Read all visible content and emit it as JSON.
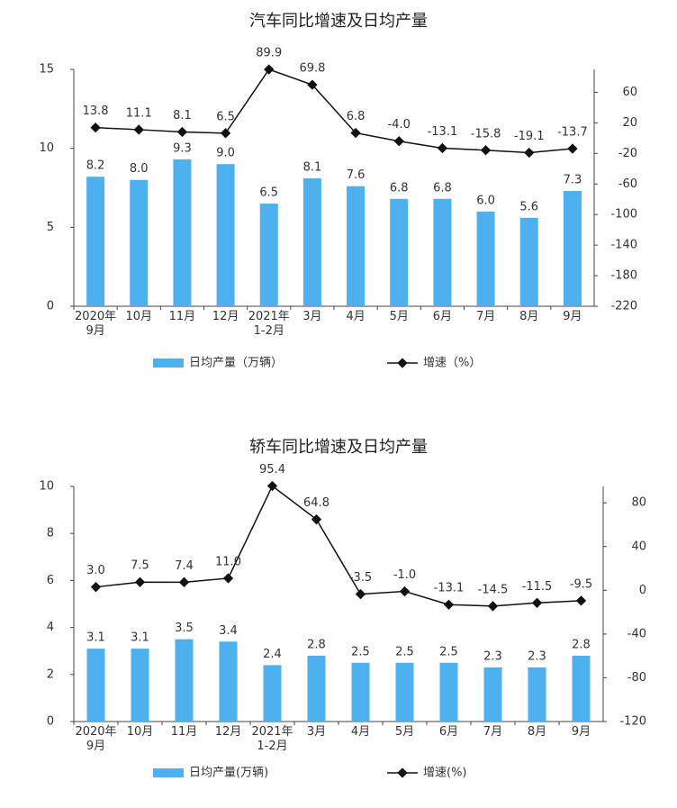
{
  "chart_data": [
    {
      "type": "combo",
      "title": "汽车同比增速及日均产量",
      "categories": [
        "2020年\n9月",
        "10月",
        "11月",
        "12月",
        "2021年\n1-2月",
        "3月",
        "4月",
        "5月",
        "6月",
        "7月",
        "8月",
        "9月"
      ],
      "series": [
        {
          "name": "日均产量（万辆）",
          "type": "bar",
          "color": "#4db1ef",
          "values": [
            8.2,
            8.0,
            9.3,
            9.0,
            6.5,
            8.1,
            7.6,
            6.8,
            6.8,
            6.0,
            5.6,
            7.3
          ],
          "value_labels": [
            "8.2",
            "8.0",
            "9.3",
            "9.0",
            "6.5",
            "8.1",
            "7.6",
            "6.8",
            "6.8",
            "6.0",
            "5.6",
            "7.3"
          ]
        },
        {
          "name": "增速（%）",
          "type": "line",
          "axis": "y2",
          "color": "#111111",
          "values": [
            13.8,
            11.1,
            8.1,
            6.5,
            89.9,
            69.8,
            6.8,
            -4.0,
            -13.1,
            -15.8,
            -19.1,
            -13.7
          ],
          "value_labels": [
            "13.8",
            "11.1",
            "8.1",
            "6.5",
            "89.9",
            "69.8",
            "6.8",
            "-4.0",
            "-13.1",
            "-15.8",
            "-19.1",
            "-13.7"
          ]
        }
      ],
      "ylim": [
        0,
        15
      ],
      "yticks": [
        0,
        5,
        10,
        15
      ],
      "y2lim": [
        -220,
        90
      ],
      "y2ticks": [
        -220,
        -180,
        -140,
        -100,
        -60,
        -20,
        20,
        60
      ]
    },
    {
      "type": "combo",
      "title": "轿车同比增速及日均产量",
      "categories": [
        "2020年\n9月",
        "10月",
        "11月",
        "12月",
        "2021年\n1-2月",
        "3月",
        "4月",
        "5月",
        "6月",
        "7月",
        "8月",
        "9月"
      ],
      "series": [
        {
          "name": "日均产量(万辆)",
          "type": "bar",
          "color": "#4db1ef",
          "values": [
            3.1,
            3.1,
            3.5,
            3.4,
            2.4,
            2.8,
            2.5,
            2.5,
            2.5,
            2.3,
            2.3,
            2.8
          ]
        },
        {
          "name": "增速(%)",
          "type": "line",
          "axis": "y2",
          "color": "#111111",
          "values": [
            3.0,
            7.5,
            7.4,
            11.0,
            95.4,
            64.8,
            -3.5,
            -1.0,
            -13.1,
            -14.5,
            -11.5,
            -9.5
          ],
          "value_labels": [
            "3.0",
            "7.5",
            "7.4",
            "11.0",
            "95.4",
            "64.8",
            "-3.5",
            "-1.0",
            "-13.1",
            "-14.5",
            "-11.5",
            "-9.5"
          ]
        }
      ],
      "ylim": [
        0,
        10
      ],
      "yticks": [
        0,
        2,
        4,
        6,
        8,
        10
      ],
      "y2lim": [
        -120,
        95
      ],
      "y2ticks": [
        -120,
        -80,
        -40,
        0,
        40,
        80
      ]
    }
  ]
}
